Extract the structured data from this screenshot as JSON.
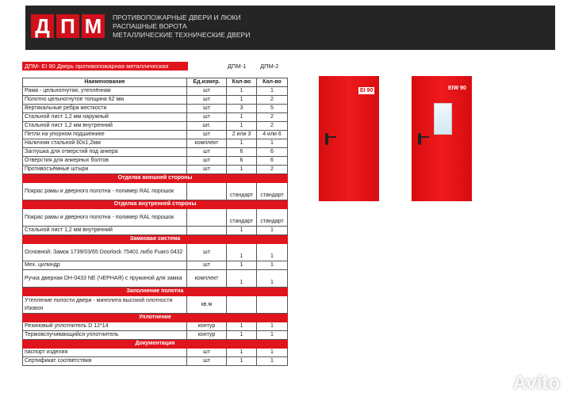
{
  "header": {
    "logo_letters": [
      "Д",
      "П",
      "М"
    ],
    "taglines": [
      "ПРОТИВОПОЖАРНЫЕ ДВЕРИ И ЛЮКИ",
      "РАСПАШНЫЕ ВОРОТА",
      "МЕТАЛЛИЧЕСКИЕ ТЕХНИЧЕСКИЕ ДВЕРИ"
    ]
  },
  "title": "ДПМ- EI 90  Дверь противопожарная металлическая",
  "models": [
    "ДПМ-1",
    "ДПМ-2"
  ],
  "table": {
    "headers": [
      "Наименование",
      "Ед.измер.",
      "Кол-во",
      "Кол-во"
    ],
    "rows": [
      {
        "c": [
          "Рама - цельногнутая, утеплённая",
          "шт",
          "1",
          "1"
        ]
      },
      {
        "c": [
          "Полотно цельногнутое толщина 62 мм",
          "шт",
          "1",
          "2"
        ]
      },
      {
        "c": [
          "Вертикальные ребра жесткости",
          "шт",
          "3",
          "5"
        ]
      },
      {
        "c": [
          "Стальной лист 1,2 мм наружный",
          "шт",
          "1",
          "2"
        ]
      },
      {
        "c": [
          "Стальной лист 1,2 мм внутренний",
          "шт.",
          "1",
          "2"
        ]
      },
      {
        "c": [
          "Петли на упорном подшипнике",
          "шт",
          "2 или 3",
          "4 или 6"
        ]
      },
      {
        "c": [
          "Наличник стальной 60х1,2мм",
          "комплект",
          "1",
          "1"
        ]
      },
      {
        "c": [
          "Заглушка для отверстий под анкера",
          "шт",
          "6",
          "6"
        ]
      },
      {
        "c": [
          "Отверстия для анкерных болтов",
          "шт",
          "6",
          "6"
        ]
      },
      {
        "c": [
          "Противосъёмные штыри",
          "шт",
          "1",
          "2"
        ]
      },
      {
        "section": "Отделка внешней стороны"
      },
      {
        "c": [
          "Покрас рамы и дверного полотна - полимер RAL порошок",
          "",
          "стандарт",
          "стандарт"
        ],
        "dbl": true
      },
      {
        "section": "Отделка внутренней стороны"
      },
      {
        "c": [
          "Покрас рамы и дверного полотна - полимер RAL порошок",
          "",
          "стандарт",
          "стандарт"
        ],
        "dbl": true
      },
      {
        "c": [
          "Стальной лист 1,2 мм внутренний",
          "",
          "1",
          "1"
        ]
      },
      {
        "section": "Замковая система"
      },
      {
        "c": [
          "Основной:  Замок 1739/03/65 Doorlock 75401 либо Fuaro 0432",
          "шт",
          "1",
          "1"
        ],
        "dbl": true
      },
      {
        "c": [
          "Мех. цилиндр",
          "шт",
          "1",
          "1"
        ]
      },
      {
        "c": [
          "Ручка дверная DH-0433 NE (ЧЕРНАЯ) с пружиной для замка",
          "комплект",
          "1",
          "1"
        ],
        "dbl": true
      },
      {
        "section": "Заполнение полотна"
      },
      {
        "c": [
          "Утепление полости двери -  минплита высокой плотности Изовол",
          "кв.м",
          "",
          ""
        ],
        "dbl": true
      },
      {
        "section": "Уплотнение"
      },
      {
        "c": [
          "Резиновый уплотнитель D 12*14",
          "контур",
          "1",
          "1"
        ]
      },
      {
        "c": [
          "Термовспучивающийся уплотнитель",
          "контур",
          "1",
          "1"
        ]
      },
      {
        "section": "Документация"
      },
      {
        "c": [
          "паспорт изделия",
          "шт",
          "1",
          "1"
        ]
      },
      {
        "c": [
          "Сертификат соответствия",
          "шт",
          "1",
          "1"
        ]
      }
    ]
  },
  "doors": [
    {
      "sign": "EI 90"
    },
    {
      "sign": "EIW 90"
    }
  ],
  "watermark": "Avito",
  "colors": {
    "accent": "#e0141c",
    "banner": "#252525"
  }
}
